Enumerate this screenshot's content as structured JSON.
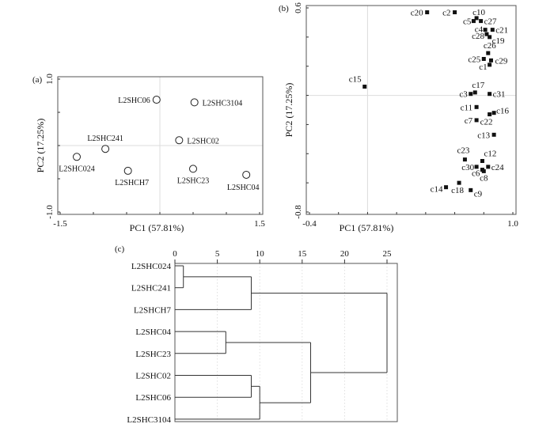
{
  "chart_data": [
    {
      "panel": "(a)",
      "type": "scatter",
      "xlabel": "PC1 (57.81%)",
      "ylabel": "PC2 (17.25%)",
      "xlim": [
        -1.5,
        1.5
      ],
      "ylim": [
        -1.0,
        1.0
      ],
      "xticks": [
        -1.5,
        -1.0,
        -0.5,
        0,
        0.5,
        1.0,
        1.5
      ],
      "yticks": [
        -1.0,
        -0.5,
        0,
        0.5,
        1.0
      ],
      "xtick_labels": [
        "-1.5",
        "1.5"
      ],
      "ytick_labels": [
        "-1.0",
        "1.0"
      ],
      "marker": "open-circle",
      "points": [
        {
          "label": "L2SHC06",
          "x": -0.05,
          "y": 0.69
        },
        {
          "label": "L2SHC3104",
          "x": 0.52,
          "y": 0.65
        },
        {
          "label": "L2SHC241",
          "x": -0.82,
          "y": -0.05
        },
        {
          "label": "L2SHC024",
          "x": -1.25,
          "y": -0.17
        },
        {
          "label": "L2SHC02",
          "x": 0.29,
          "y": 0.08
        },
        {
          "label": "L2SHCH7",
          "x": -0.48,
          "y": -0.38
        },
        {
          "label": "L2SHC23",
          "x": 0.5,
          "y": -0.35
        },
        {
          "label": "L2SHC04",
          "x": 1.3,
          "y": -0.44
        }
      ]
    },
    {
      "panel": "(b)",
      "type": "scatter",
      "xlabel": "PC1 (57.81%)",
      "ylabel": "PC2 (17.25%)",
      "xlim": [
        -0.4,
        1.0
      ],
      "ylim": [
        -0.8,
        0.6
      ],
      "xticks": [
        -0.4,
        -0.2,
        0,
        0.2,
        0.4,
        0.6,
        0.8,
        1.0
      ],
      "yticks": [
        -0.8,
        -0.6,
        -0.4,
        -0.2,
        0,
        0.2,
        0.4,
        0.6
      ],
      "xtick_labels": [
        "-0.4",
        "1.0"
      ],
      "ytick_labels": [
        "-0.8",
        "0.6"
      ],
      "marker": "filled-square",
      "points": [
        {
          "label": "c20",
          "x": 0.41,
          "y": 0.57
        },
        {
          "label": "c2",
          "x": 0.6,
          "y": 0.57
        },
        {
          "label": "c10",
          "x": 0.75,
          "y": 0.53
        },
        {
          "label": "c5",
          "x": 0.73,
          "y": 0.51
        },
        {
          "label": "c27",
          "x": 0.78,
          "y": 0.51
        },
        {
          "label": "c4",
          "x": 0.81,
          "y": 0.45
        },
        {
          "label": "c21",
          "x": 0.86,
          "y": 0.45
        },
        {
          "label": "c28",
          "x": 0.82,
          "y": 0.42
        },
        {
          "label": "c19",
          "x": 0.84,
          "y": 0.4
        },
        {
          "label": "c26",
          "x": 0.83,
          "y": 0.29
        },
        {
          "label": "c25",
          "x": 0.8,
          "y": 0.25
        },
        {
          "label": "c29",
          "x": 0.85,
          "y": 0.24
        },
        {
          "label": "c1",
          "x": 0.84,
          "y": 0.21
        },
        {
          "label": "c15",
          "x": -0.02,
          "y": 0.06
        },
        {
          "label": "c17",
          "x": 0.74,
          "y": 0.02
        },
        {
          "label": "c3",
          "x": 0.71,
          "y": 0.01
        },
        {
          "label": "c31",
          "x": 0.84,
          "y": 0.01
        },
        {
          "label": "c11",
          "x": 0.75,
          "y": -0.08
        },
        {
          "label": "c16",
          "x": 0.87,
          "y": -0.12
        },
        {
          "label": "c22",
          "x": 0.84,
          "y": -0.13
        },
        {
          "label": "c7",
          "x": 0.75,
          "y": -0.17
        },
        {
          "label": "c13",
          "x": 0.87,
          "y": -0.27
        },
        {
          "label": "c23",
          "x": 0.67,
          "y": -0.44
        },
        {
          "label": "c12",
          "x": 0.79,
          "y": -0.45
        },
        {
          "label": "c30",
          "x": 0.75,
          "y": -0.49
        },
        {
          "label": "c24",
          "x": 0.83,
          "y": -0.49
        },
        {
          "label": "c6",
          "x": 0.79,
          "y": -0.51
        },
        {
          "label": "c8",
          "x": 0.8,
          "y": -0.52
        },
        {
          "label": "c18",
          "x": 0.63,
          "y": -0.6
        },
        {
          "label": "c14",
          "x": 0.54,
          "y": -0.63
        },
        {
          "label": "c9",
          "x": 0.71,
          "y": -0.65
        }
      ]
    },
    {
      "panel": "(c)",
      "type": "dendrogram",
      "xlim": [
        0,
        25
      ],
      "xticks": [
        0,
        5,
        10,
        15,
        20,
        25
      ],
      "xtick_labels": [
        "0",
        "5",
        "10",
        "15",
        "20",
        "25"
      ],
      "leaves": [
        "L2SHC024",
        "L2SHC241",
        "L2SHCH7",
        "L2SHC04",
        "L2SHC23",
        "L2SHC02",
        "L2SHC06",
        "L2SHC3104"
      ],
      "merges": [
        {
          "a": "L2SHC024",
          "b": "L2SHC241",
          "distance": 1,
          "id": "m1"
        },
        {
          "a": "m1",
          "b": "L2SHCH7",
          "distance": 9,
          "id": "m2"
        },
        {
          "a": "L2SHC04",
          "b": "L2SHC23",
          "distance": 6,
          "id": "m3"
        },
        {
          "a": "L2SHC02",
          "b": "L2SHC06",
          "distance": 9,
          "id": "m4"
        },
        {
          "a": "m4",
          "b": "L2SHC3104",
          "distance": 10,
          "id": "m5"
        },
        {
          "a": "m3",
          "b": "m5",
          "distance": 16,
          "id": "m6"
        },
        {
          "a": "m2",
          "b": "m6",
          "distance": 25,
          "id": "m7"
        }
      ]
    }
  ]
}
